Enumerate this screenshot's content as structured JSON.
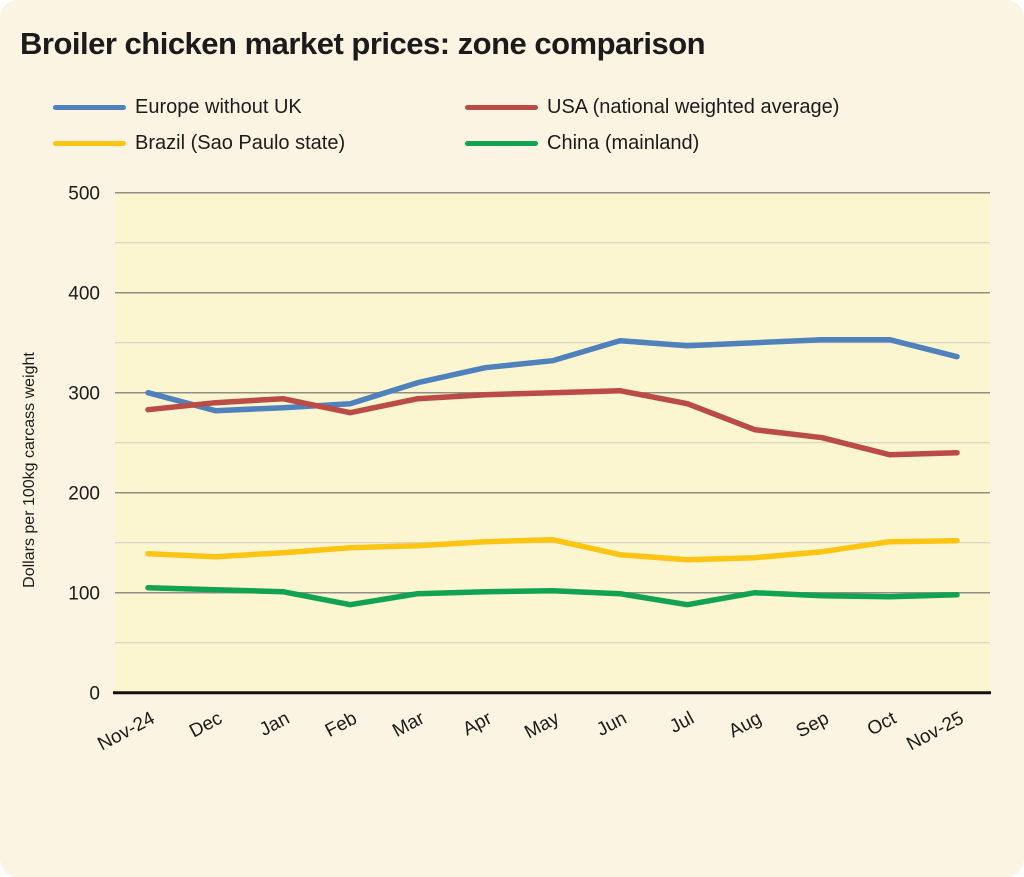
{
  "title": "Broiler chicken market prices: zone comparison",
  "colors": {
    "card_background": "#fbf4e2",
    "plot_background": "#fcf6d0",
    "grid_major": "#8f8f86",
    "grid_minor": "#d2d2c2",
    "axis_line": "#111111",
    "text": "#1b1b1b"
  },
  "chart_data": {
    "type": "line",
    "title": "Broiler chicken market prices: zone comparison",
    "xlabel": "",
    "ylabel": "Dollars per 100kg carcass weight",
    "ylim": [
      0,
      500
    ],
    "yticks": [
      0,
      100,
      200,
      300,
      400,
      500
    ],
    "grid_minor_step": 50,
    "grid": "horizontal",
    "legend_position": "top",
    "categories": [
      "Nov-24",
      "Dec",
      "Jan",
      "Feb",
      "Mar",
      "Apr",
      "May",
      "Jun",
      "Jul",
      "Aug",
      "Sep",
      "Oct",
      "Nov-25"
    ],
    "series": [
      {
        "name": "Europe without UK",
        "color": "#4f81bd",
        "values": [
          300,
          282,
          285,
          289,
          310,
          325,
          332,
          352,
          347,
          350,
          353,
          353,
          336
        ]
      },
      {
        "name": "USA (national weighted average)",
        "color": "#bb4b45",
        "values": [
          283,
          290,
          294,
          280,
          294,
          298,
          300,
          302,
          289,
          263,
          255,
          238,
          240
        ]
      },
      {
        "name": "Brazil (Sao Paulo state)",
        "color": "#fec414",
        "values": [
          139,
          136,
          140,
          145,
          147,
          151,
          153,
          138,
          133,
          135,
          141,
          151,
          152
        ]
      },
      {
        "name": "China (mainland)",
        "color": "#11a351",
        "values": [
          105,
          103,
          101,
          88,
          99,
          101,
          102,
          99,
          88,
          100,
          97,
          96,
          98
        ]
      }
    ]
  }
}
